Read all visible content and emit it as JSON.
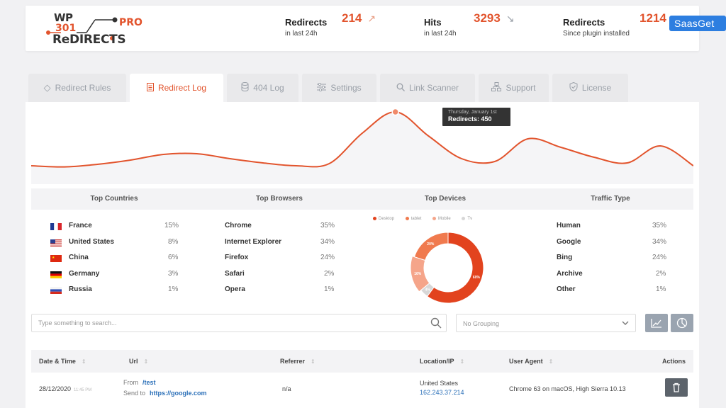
{
  "header": {
    "logo": {
      "wp": "WP",
      "n301": "301",
      "pro": "PRO",
      "redirects": "ReDIRECTS"
    },
    "stats": [
      {
        "title": "Redirects",
        "subtitle": "in last 24h",
        "value": "214",
        "trend": "up"
      },
      {
        "title": "Hits",
        "subtitle": "in last 24h",
        "value": "3293",
        "trend": "down"
      },
      {
        "title": "Redirects",
        "subtitle": "Since plugin installed",
        "value": "1214"
      }
    ]
  },
  "watermark": "SaasGet",
  "tabs": [
    {
      "label": "Redirect Rules",
      "icon": "diamond-arrow-icon",
      "active": false
    },
    {
      "label": "Redirect Log",
      "icon": "document-icon",
      "active": true
    },
    {
      "label": "404 Log",
      "icon": "database-icon",
      "active": false
    },
    {
      "label": "Settings",
      "icon": "sliders-icon",
      "active": false
    },
    {
      "label": "Link Scanner",
      "icon": "search-icon",
      "active": false
    },
    {
      "label": "Support",
      "icon": "sitemap-icon",
      "active": false
    },
    {
      "label": "License",
      "icon": "shield-check-icon",
      "active": false
    }
  ],
  "chart_data": [
    {
      "type": "area",
      "x": [
        0,
        1,
        2,
        3,
        4,
        5,
        6,
        7,
        8,
        9,
        10,
        11,
        12,
        13,
        14,
        15,
        16,
        17,
        18,
        19,
        20
      ],
      "values": [
        70,
        62,
        80,
        110,
        150,
        155,
        120,
        90,
        70,
        85,
        300,
        450,
        280,
        120,
        100,
        260,
        200,
        130,
        90,
        210,
        70
      ],
      "series_color": "#e2542d",
      "grid": false,
      "tooltip": {
        "date": "Thursday, January 1st",
        "label": "Redirects: 450"
      }
    },
    {
      "type": "pie",
      "title": "Top Devices",
      "labels": [
        "Desktop",
        "tablet",
        "Mobile",
        "Tv"
      ],
      "values": [
        60,
        20,
        16,
        4
      ],
      "value_labels": [
        "60%",
        "20%",
        "16%",
        "4%"
      ],
      "colors": [
        "#e2431e",
        "#f07a4e",
        "#f5a58a",
        "#d7d7d7"
      ]
    }
  ],
  "stats": {
    "countries": {
      "title": "Top Countries",
      "rows": [
        {
          "name": "France",
          "pct": "15%",
          "flag": "fr"
        },
        {
          "name": "United States",
          "pct": "8%",
          "flag": "us"
        },
        {
          "name": "China",
          "pct": "6%",
          "flag": "cn"
        },
        {
          "name": "Germany",
          "pct": "3%",
          "flag": "de"
        },
        {
          "name": "Russia",
          "pct": "1%",
          "flag": "ru"
        }
      ]
    },
    "browsers": {
      "title": "Top Browsers",
      "rows": [
        {
          "name": "Chrome",
          "pct": "35%"
        },
        {
          "name": "Internet Explorer",
          "pct": "34%"
        },
        {
          "name": "Firefox",
          "pct": "24%"
        },
        {
          "name": "Safari",
          "pct": "2%"
        },
        {
          "name": "Opera",
          "pct": "1%"
        }
      ]
    },
    "traffic": {
      "title": "Traffic Type",
      "rows": [
        {
          "name": "Human",
          "pct": "35%"
        },
        {
          "name": "Google",
          "pct": "34%"
        },
        {
          "name": "Bing",
          "pct": "24%"
        },
        {
          "name": "Archive",
          "pct": "2%"
        },
        {
          "name": "Other",
          "pct": "1%"
        }
      ]
    }
  },
  "search": {
    "placeholder": "Type something to search..."
  },
  "grouping": {
    "value": "No Grouping"
  },
  "log": {
    "columns": [
      "Date & Time",
      "Url",
      "Referrer",
      "Location/IP",
      "User Agent",
      "Actions"
    ],
    "rows": [
      {
        "date": "28/12/2020",
        "time": "11:45 PM",
        "from_label": "From",
        "from": "/test",
        "to_label": "Send to",
        "to": "https://google.com",
        "referrer": "n/a",
        "location": "United States",
        "ip": "162.243.37.214",
        "agent": "Chrome 63 on macOS, High Sierra 10.13"
      }
    ]
  }
}
